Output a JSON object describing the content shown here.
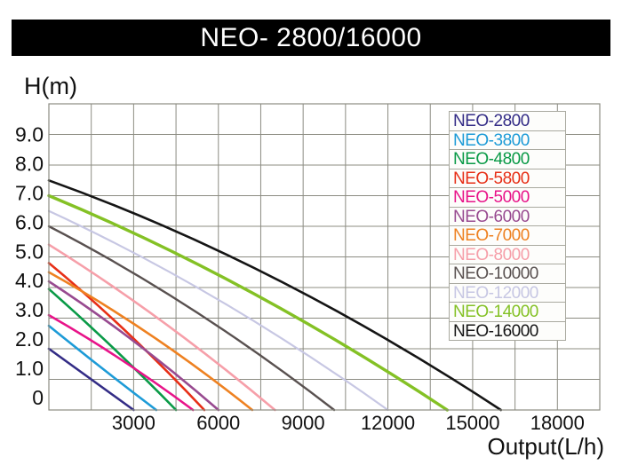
{
  "window": {
    "title": "NEO- 2800/16000"
  },
  "axes": {
    "y_label": "H(m)",
    "x_label": "Output(L/h)"
  },
  "colors": {
    "background": "#ffffff",
    "title_bar_bg": "#000000",
    "title_text": "#ffffff",
    "grid": "#8c8c82",
    "tick_text": "#111111",
    "legend_bg": "#fdfdfb",
    "legend_border": "#a9a99f"
  },
  "chart_data": {
    "type": "line",
    "title": "NEO- 2800/16000",
    "xlabel": "Output(L/h)",
    "ylabel": "H(m)",
    "xlim": [
      0,
      19500
    ],
    "ylim": [
      0,
      10
    ],
    "x_grid_step": 1500,
    "y_grid_step": 1,
    "grid": true,
    "legend_position": "upper right",
    "x_ticks": [
      {
        "value": 3000,
        "label": "3000"
      },
      {
        "value": 6000,
        "label": "6000"
      },
      {
        "value": 9000,
        "label": "9000"
      },
      {
        "value": 12000,
        "label": "12000"
      },
      {
        "value": 15000,
        "label": "15000"
      },
      {
        "value": 18000,
        "label": "18000"
      }
    ],
    "y_ticks": [
      {
        "value": 9,
        "label": "9.0"
      },
      {
        "value": 8,
        "label": "8.0"
      },
      {
        "value": 7,
        "label": "7.0"
      },
      {
        "value": 6,
        "label": "6.0"
      },
      {
        "value": 5,
        "label": "5.0"
      },
      {
        "value": 4,
        "label": "4.0"
      },
      {
        "value": 3,
        "label": "3.0"
      },
      {
        "value": 2,
        "label": "2.0"
      },
      {
        "value": 1,
        "label": "1.0"
      },
      {
        "value": 0,
        "label": "0"
      }
    ],
    "series": [
      {
        "name": "NEO-2800",
        "color": "#332c86",
        "width": 2.6,
        "points": [
          [
            0,
            2.0
          ],
          [
            1500,
            1.0
          ],
          [
            3000,
            0
          ]
        ]
      },
      {
        "name": "NEO-3800",
        "color": "#1d9bd7",
        "width": 2.6,
        "points": [
          [
            0,
            2.75
          ],
          [
            1900,
            1.35
          ],
          [
            3800,
            0
          ]
        ]
      },
      {
        "name": "NEO-4800",
        "color": "#0a9a47",
        "width": 2.6,
        "points": [
          [
            0,
            3.95
          ],
          [
            2250,
            2.05
          ],
          [
            4500,
            0
          ]
        ]
      },
      {
        "name": "NEO-5800",
        "color": "#e72f17",
        "width": 2.6,
        "points": [
          [
            0,
            4.8
          ],
          [
            2750,
            2.55
          ],
          [
            5500,
            0
          ]
        ]
      },
      {
        "name": "NEO-5000",
        "color": "#e81389",
        "width": 2.6,
        "points": [
          [
            0,
            3.1
          ],
          [
            2550,
            1.65
          ],
          [
            5100,
            0
          ]
        ]
      },
      {
        "name": "NEO-6000",
        "color": "#984a90",
        "width": 2.6,
        "points": [
          [
            0,
            4.2
          ],
          [
            3000,
            2.25
          ],
          [
            6000,
            0
          ]
        ]
      },
      {
        "name": "NEO-7000",
        "color": "#ee8121",
        "width": 2.6,
        "points": [
          [
            0,
            4.5
          ],
          [
            3600,
            2.45
          ],
          [
            7200,
            0
          ]
        ]
      },
      {
        "name": "NEO-8000",
        "color": "#f69fa9",
        "width": 2.6,
        "points": [
          [
            0,
            5.4
          ],
          [
            4000,
            2.9
          ],
          [
            8000,
            0
          ]
        ]
      },
      {
        "name": "NEO-10000",
        "color": "#595150",
        "width": 2.4,
        "points": [
          [
            0,
            6.0
          ],
          [
            5050,
            3.3
          ],
          [
            10100,
            0
          ]
        ]
      },
      {
        "name": "NEO-12000",
        "color": "#c7c7e3",
        "width": 2.2,
        "points": [
          [
            0,
            6.5
          ],
          [
            6000,
            3.6
          ],
          [
            12000,
            0
          ]
        ]
      },
      {
        "name": "NEO-14000",
        "color": "#84c125",
        "width": 3.4,
        "points": [
          [
            0,
            7.0
          ],
          [
            7050,
            3.9
          ],
          [
            14100,
            0
          ]
        ]
      },
      {
        "name": "NEO-16000",
        "color": "#151515",
        "width": 2.6,
        "points": [
          [
            0,
            7.5
          ],
          [
            8000,
            4.3
          ],
          [
            16000,
            0
          ]
        ]
      }
    ]
  },
  "legend": {
    "items": [
      "NEO-2800",
      "NEO-3800",
      "NEO-4800",
      "NEO-5800",
      "NEO-5000",
      "NEO-6000",
      "NEO-7000",
      "NEO-8000",
      "NEO-10000",
      "NEO-12000",
      "NEO-14000",
      "NEO-16000"
    ]
  }
}
